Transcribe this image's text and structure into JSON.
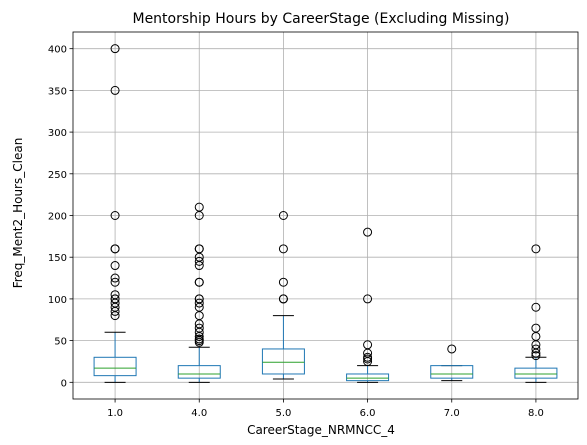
{
  "chart_data": {
    "type": "box",
    "title": "Mentorship Hours by CareerStage (Excluding Missing)",
    "xlabel": "CareerStage_NRMNCC_4",
    "ylabel": "Freq_Ment2_Hours_Clean",
    "ylim": [
      -20,
      420
    ],
    "yticks": [
      0,
      50,
      100,
      150,
      200,
      250,
      300,
      350,
      400
    ],
    "grid": true,
    "colors": {
      "box": "#1f77b4",
      "median": "#2ca02c",
      "whisker_cap": "#000000",
      "outlier": "#000000",
      "grid": "#b0b0b0"
    },
    "categories": [
      "1.0",
      "4.0",
      "5.0",
      "6.0",
      "7.0",
      "8.0"
    ],
    "boxes": [
      {
        "category": "1.0",
        "whislo": 0,
        "q1": 8,
        "median": 17,
        "q3": 30,
        "whishi": 60,
        "outliers": [
          80,
          85,
          90,
          95,
          100,
          100,
          105,
          120,
          125,
          140,
          160,
          160,
          200,
          350,
          400
        ]
      },
      {
        "category": "4.0",
        "whislo": 0,
        "q1": 5,
        "median": 10,
        "q3": 20,
        "whishi": 42,
        "outliers": [
          48,
          50,
          52,
          55,
          60,
          65,
          70,
          80,
          90,
          95,
          100,
          100,
          120,
          120,
          140,
          145,
          150,
          160,
          160,
          200,
          210
        ]
      },
      {
        "category": "5.0",
        "whislo": 4,
        "q1": 10,
        "median": 24,
        "q3": 40,
        "whishi": 80,
        "outliers": [
          100,
          100,
          120,
          160,
          200
        ]
      },
      {
        "category": "6.0",
        "whislo": 0,
        "q1": 2,
        "median": 5,
        "q3": 10,
        "whishi": 20,
        "outliers": [
          25,
          28,
          30,
          35,
          45,
          100,
          180
        ]
      },
      {
        "category": "7.0",
        "whislo": 2,
        "q1": 5,
        "median": 10,
        "q3": 20,
        "whishi": 20,
        "outliers": [
          40
        ]
      },
      {
        "category": "8.0",
        "whislo": 0,
        "q1": 5,
        "median": 10,
        "q3": 17,
        "whishi": 30,
        "outliers": [
          32,
          35,
          40,
          45,
          55,
          65,
          90,
          160
        ]
      }
    ]
  }
}
